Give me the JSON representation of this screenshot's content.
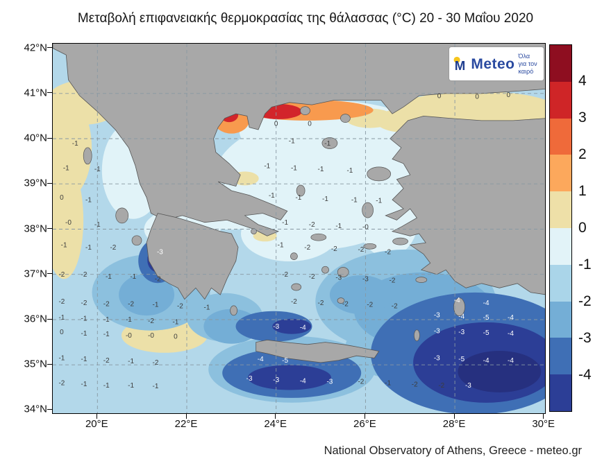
{
  "title": "Μεταβολή επιφανειακής θερμοκρασίας της θάλασσας (°C) 20 - 30 Μαΐου 2020",
  "footer": "National Observatory of Athens, Greece - meteo.gr",
  "logo": {
    "monogram": "M",
    "brand": "Meteo",
    "tagline": "Όλα για τον καιρό",
    "sun_color": "#f6c51c",
    "brand_color": "#2a4aa0"
  },
  "axes": {
    "lat_ticks": [
      {
        "label": "42°N",
        "lat": 42
      },
      {
        "label": "41°N",
        "lat": 41
      },
      {
        "label": "40°N",
        "lat": 40
      },
      {
        "label": "39°N",
        "lat": 39
      },
      {
        "label": "38°N",
        "lat": 38
      },
      {
        "label": "37°N",
        "lat": 37
      },
      {
        "label": "36°N",
        "lat": 36
      },
      {
        "label": "35°N",
        "lat": 35
      },
      {
        "label": "34°N",
        "lat": 34
      }
    ],
    "lon_ticks": [
      {
        "label": "20°E",
        "lon": 20
      },
      {
        "label": "22°E",
        "lon": 22
      },
      {
        "label": "24°E",
        "lon": 24
      },
      {
        "label": "26°E",
        "lon": 26
      },
      {
        "label": "28°E",
        "lon": 28
      },
      {
        "label": "30°E",
        "lon": 30
      }
    ]
  },
  "colorbar": {
    "ticks": [
      "4",
      "3",
      "2",
      "1",
      "0",
      "-1",
      "-2",
      "-3",
      "-4"
    ],
    "colors": [
      "#8e0e20",
      "#cf2527",
      "#ef6a3a",
      "#fca85c",
      "#eee0a8",
      "#e2f3f8",
      "#aad5e9",
      "#74aed6",
      "#3f6fb5",
      "#2c3e96"
    ]
  },
  "palette": {
    "sea_light": "#b3d8ea",
    "sea_pale": "#e1f3f8",
    "sea_warm": "#ece0a8",
    "sea_med1": "#8cc0de",
    "sea_med2": "#74aed6",
    "sea_dark": "#3f6fb5",
    "sea_navy": "#2c3e96",
    "sea_deepest": "#26307f",
    "sea_orange": "#f89a4e",
    "sea_red": "#d2252b",
    "land": "#a8a8a8",
    "coast": "#555555",
    "grid": "#8898a2",
    "label_dark": "#3d3d3d",
    "label_light": "#ffffff"
  },
  "map_labels": [
    [
      27.65,
      40.9,
      "0",
      0
    ],
    [
      28.5,
      40.88,
      "0",
      0
    ],
    [
      29.2,
      40.92,
      "0",
      0
    ],
    [
      24.0,
      40.28,
      "0",
      0
    ],
    [
      24.75,
      40.28,
      "0",
      0
    ],
    [
      24.35,
      39.9,
      "-1",
      0
    ],
    [
      25.15,
      39.85,
      "-1",
      0
    ],
    [
      23.8,
      39.35,
      "-1",
      0
    ],
    [
      24.4,
      39.3,
      "-1",
      0
    ],
    [
      25.0,
      39.28,
      "-1",
      0
    ],
    [
      25.65,
      39.25,
      "-1",
      0
    ],
    [
      19.5,
      39.85,
      "-1",
      0
    ],
    [
      19.3,
      39.3,
      "-1",
      0
    ],
    [
      20.0,
      39.28,
      "-1",
      0
    ],
    [
      19.2,
      38.65,
      "0",
      0
    ],
    [
      19.8,
      38.6,
      "-1",
      0
    ],
    [
      19.35,
      38.1,
      "-0",
      0
    ],
    [
      20.0,
      38.05,
      "-1",
      0
    ],
    [
      19.25,
      37.6,
      "-1",
      0
    ],
    [
      19.8,
      37.55,
      "-1",
      0
    ],
    [
      20.35,
      37.55,
      "-2",
      0
    ],
    [
      21.4,
      37.45,
      "-3",
      1
    ],
    [
      19.2,
      36.95,
      "-2",
      0
    ],
    [
      19.7,
      36.95,
      "-2",
      0
    ],
    [
      20.25,
      36.9,
      "-1",
      0
    ],
    [
      20.8,
      36.9,
      "-1",
      0
    ],
    [
      21.35,
      36.85,
      "-2",
      0
    ],
    [
      19.2,
      36.35,
      "-2",
      0
    ],
    [
      19.7,
      36.32,
      "-2",
      0
    ],
    [
      20.2,
      36.3,
      "-2",
      0
    ],
    [
      20.75,
      36.3,
      "-2",
      0
    ],
    [
      21.3,
      36.28,
      "-1",
      0
    ],
    [
      21.85,
      36.25,
      "-2",
      0
    ],
    [
      22.45,
      36.22,
      "-1",
      0
    ],
    [
      19.2,
      36.0,
      "-1",
      0
    ],
    [
      19.7,
      35.98,
      "-1",
      0
    ],
    [
      20.2,
      35.95,
      "-1",
      0
    ],
    [
      20.7,
      35.95,
      "-1",
      0
    ],
    [
      21.2,
      35.92,
      "-2",
      0
    ],
    [
      21.75,
      35.9,
      "-1",
      0
    ],
    [
      19.2,
      35.68,
      "0",
      0
    ],
    [
      19.7,
      35.65,
      "-1",
      0
    ],
    [
      20.2,
      35.63,
      "-1",
      0
    ],
    [
      20.7,
      35.6,
      "-0",
      0
    ],
    [
      21.2,
      35.6,
      "-0",
      0
    ],
    [
      21.75,
      35.58,
      "0",
      0
    ],
    [
      19.2,
      35.1,
      "-1",
      0
    ],
    [
      19.7,
      35.08,
      "-1",
      0
    ],
    [
      20.2,
      35.05,
      "-2",
      0
    ],
    [
      20.75,
      35.03,
      "-1",
      0
    ],
    [
      21.3,
      35.0,
      "-2",
      0
    ],
    [
      19.2,
      34.55,
      "-2",
      0
    ],
    [
      19.7,
      34.53,
      "-1",
      0
    ],
    [
      20.2,
      34.5,
      "-1",
      0
    ],
    [
      20.75,
      34.5,
      "-1",
      0
    ],
    [
      21.3,
      34.48,
      "-1",
      0
    ],
    [
      23.9,
      38.7,
      "-1",
      0
    ],
    [
      24.5,
      38.65,
      "-1",
      0
    ],
    [
      25.1,
      38.62,
      "-1",
      0
    ],
    [
      25.75,
      38.6,
      "-1",
      0
    ],
    [
      26.3,
      38.58,
      "-1",
      0
    ],
    [
      24.2,
      38.1,
      "-1",
      0
    ],
    [
      24.8,
      38.05,
      "-2",
      0
    ],
    [
      25.4,
      38.02,
      "-1",
      0
    ],
    [
      26.0,
      38.0,
      "-0",
      0
    ],
    [
      24.1,
      37.6,
      "-1",
      0
    ],
    [
      24.7,
      37.55,
      "-2",
      0
    ],
    [
      25.3,
      37.52,
      "-2",
      0
    ],
    [
      25.9,
      37.5,
      "-2",
      0
    ],
    [
      26.5,
      37.45,
      "-2",
      0
    ],
    [
      24.2,
      36.95,
      "-2",
      0
    ],
    [
      24.8,
      36.9,
      "-2",
      0
    ],
    [
      25.4,
      36.88,
      "-3",
      0
    ],
    [
      26.0,
      36.85,
      "-3",
      0
    ],
    [
      26.6,
      36.82,
      "-2",
      0
    ],
    [
      24.4,
      36.35,
      "-2",
      0
    ],
    [
      25.0,
      36.32,
      "-2",
      0
    ],
    [
      25.55,
      36.3,
      "-2",
      0
    ],
    [
      26.1,
      36.28,
      "-2",
      0
    ],
    [
      26.65,
      36.25,
      "-2",
      0
    ],
    [
      24.0,
      35.8,
      "-3",
      1
    ],
    [
      24.6,
      35.78,
      "-4",
      1
    ],
    [
      23.65,
      35.08,
      "-4",
      1
    ],
    [
      24.2,
      35.05,
      "-5",
      1
    ],
    [
      23.4,
      34.65,
      "-3",
      1
    ],
    [
      24.0,
      34.62,
      "-3",
      1
    ],
    [
      24.6,
      34.6,
      "-4",
      1
    ],
    [
      25.2,
      34.58,
      "-3",
      1
    ],
    [
      25.9,
      34.58,
      "-2",
      0
    ],
    [
      26.5,
      34.55,
      "-1",
      0
    ],
    [
      27.1,
      34.52,
      "-2",
      0
    ],
    [
      27.7,
      34.5,
      "-2",
      0
    ],
    [
      28.3,
      34.5,
      "-3",
      1
    ],
    [
      28.05,
      36.38,
      "-4",
      1
    ],
    [
      28.7,
      36.32,
      "-4",
      1
    ],
    [
      27.6,
      36.05,
      "-3",
      1
    ],
    [
      28.15,
      36.02,
      "-4",
      1
    ],
    [
      28.7,
      36.0,
      "-5",
      1
    ],
    [
      29.25,
      36.0,
      "-4",
      1
    ],
    [
      27.6,
      35.7,
      "-3",
      1
    ],
    [
      28.15,
      35.68,
      "-3",
      1
    ],
    [
      28.7,
      35.66,
      "-5",
      1
    ],
    [
      29.25,
      35.65,
      "-4",
      1
    ],
    [
      27.6,
      35.1,
      "-3",
      1
    ],
    [
      28.15,
      35.08,
      "-5",
      1
    ],
    [
      28.7,
      35.05,
      "-4",
      1
    ],
    [
      29.25,
      35.05,
      "-4",
      1
    ]
  ]
}
